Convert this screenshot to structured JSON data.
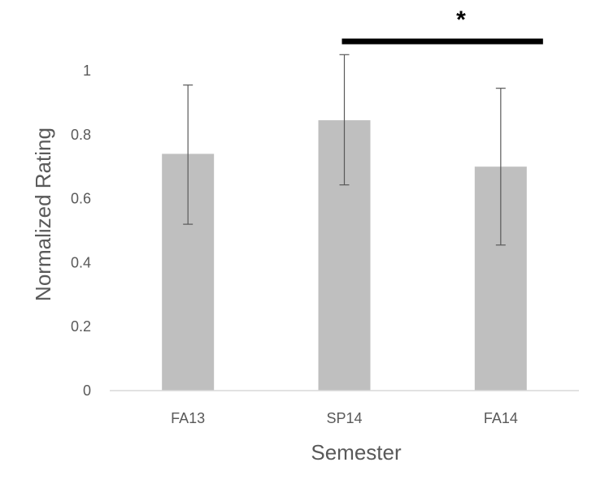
{
  "chart_data": {
    "type": "bar",
    "title": "",
    "xlabel": "Semester",
    "ylabel": "Normalized Rating",
    "categories": [
      "FA13",
      "SP14",
      "FA14"
    ],
    "values": [
      0.74,
      0.845,
      0.7
    ],
    "error_low": [
      0.52,
      0.643,
      0.455
    ],
    "error_high": [
      0.955,
      1.05,
      0.945
    ],
    "ylim": [
      0,
      1
    ],
    "yticks": [
      0,
      0.2,
      0.4,
      0.6,
      0.8,
      1
    ],
    "ytick_labels": [
      "0",
      "0.2",
      "0.4",
      "0.6",
      "0.8",
      "1"
    ],
    "grid": false,
    "bar_color": "#bfbfbf",
    "significance": {
      "from": "SP14",
      "to": "FA14",
      "label": "*"
    }
  }
}
